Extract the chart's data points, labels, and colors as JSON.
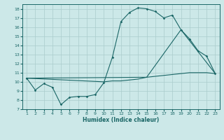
{
  "title": "",
  "xlabel": "Humidex (Indice chaleur)",
  "ylabel": "",
  "xlim": [
    0.5,
    23.5
  ],
  "ylim": [
    7,
    18.5
  ],
  "xticks": [
    1,
    2,
    3,
    4,
    5,
    6,
    7,
    8,
    9,
    10,
    11,
    12,
    13,
    14,
    15,
    16,
    17,
    18,
    19,
    20,
    21,
    22,
    23
  ],
  "yticks": [
    7,
    8,
    9,
    10,
    11,
    12,
    13,
    14,
    15,
    16,
    17,
    18
  ],
  "bg_color": "#cce8e8",
  "grid_color": "#aacccc",
  "line_color": "#1a6666",
  "line1": {
    "x": [
      1,
      2,
      3,
      4,
      5,
      6,
      7,
      8,
      9,
      10,
      11,
      12,
      13,
      14,
      15,
      16,
      17,
      18,
      19,
      20,
      21,
      22,
      23
    ],
    "y": [
      10.4,
      9.1,
      9.8,
      9.4,
      7.5,
      8.3,
      8.4,
      8.4,
      8.6,
      9.9,
      12.7,
      16.6,
      17.6,
      18.1,
      18.0,
      17.7,
      17.0,
      17.3,
      15.7,
      14.7,
      13.4,
      12.8,
      10.9
    ]
  },
  "line2": {
    "x": [
      1,
      10,
      11,
      12,
      13,
      14,
      15,
      16,
      17,
      18,
      19,
      20,
      21,
      22,
      23
    ],
    "y": [
      10.4,
      10.0,
      10.1,
      10.1,
      10.2,
      10.3,
      10.5,
      10.6,
      10.7,
      10.8,
      10.9,
      11.0,
      11.0,
      11.0,
      10.9
    ]
  },
  "line3": {
    "x": [
      1,
      15,
      19,
      23
    ],
    "y": [
      10.4,
      10.5,
      15.7,
      10.9
    ]
  }
}
